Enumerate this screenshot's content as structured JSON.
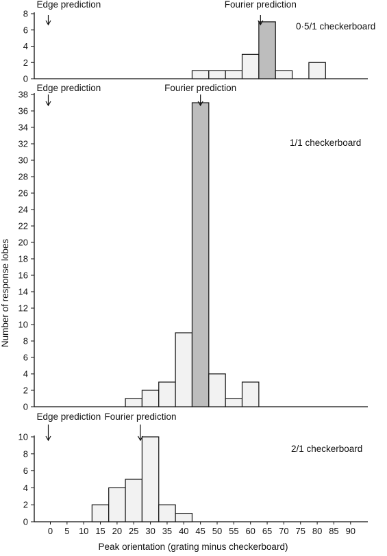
{
  "chart_data": [
    {
      "type": "bar",
      "panel_label": "0·5/1 checkerboard",
      "bins": [
        45,
        50,
        55,
        60,
        65,
        70,
        80
      ],
      "values": [
        1,
        1,
        1,
        3,
        7,
        1,
        2
      ],
      "highlight_bin": 65,
      "ylim": [
        0,
        8
      ],
      "yticks": [
        0,
        2,
        4,
        6,
        8
      ],
      "edge_label": "Edge prediction",
      "edge_x": 0,
      "fourier_label": "Fourier prediction",
      "fourier_x": 63
    },
    {
      "type": "bar",
      "panel_label": "1/1 checkerboard",
      "bins": [
        25,
        30,
        35,
        40,
        45,
        50,
        55,
        60
      ],
      "values": [
        1,
        2,
        3,
        9,
        37,
        4,
        1,
        3
      ],
      "highlight_bin": 45,
      "ylim": [
        0,
        38
      ],
      "yticks": [
        0,
        2,
        4,
        6,
        8,
        10,
        12,
        14,
        16,
        18,
        20,
        22,
        24,
        26,
        28,
        30,
        32,
        34,
        36,
        38
      ],
      "edge_label": "Edge prediction",
      "edge_x": 0,
      "fourier_label": "Fourier prediction",
      "fourier_x": 45
    },
    {
      "type": "bar",
      "panel_label": "2/1 checkerboard",
      "bins": [
        15,
        20,
        25,
        30,
        35,
        40
      ],
      "values": [
        2,
        4,
        5,
        10,
        2,
        1
      ],
      "highlight_bin": null,
      "ylim": [
        0,
        10
      ],
      "yticks": [
        0,
        2,
        4,
        6,
        8,
        10
      ],
      "edge_label": "Edge prediction",
      "edge_x": 0,
      "fourier_label": "Fourier prediction",
      "fourier_x": 27
    }
  ],
  "shared": {
    "bin_width": 5,
    "xlabel": "Peak orientation (grating minus checkerboard)",
    "ylabel": "Number of response lobes",
    "xticks": [
      0,
      5,
      10,
      15,
      20,
      25,
      30,
      35,
      40,
      45,
      50,
      55,
      60,
      65,
      70,
      75,
      80,
      85,
      90
    ],
    "xlim": [
      -2.5,
      95
    ],
    "colors": {
      "bar_fill": "#f2f2f2",
      "highlight_fill": "#bdbdbd",
      "ink": "#111111"
    }
  }
}
